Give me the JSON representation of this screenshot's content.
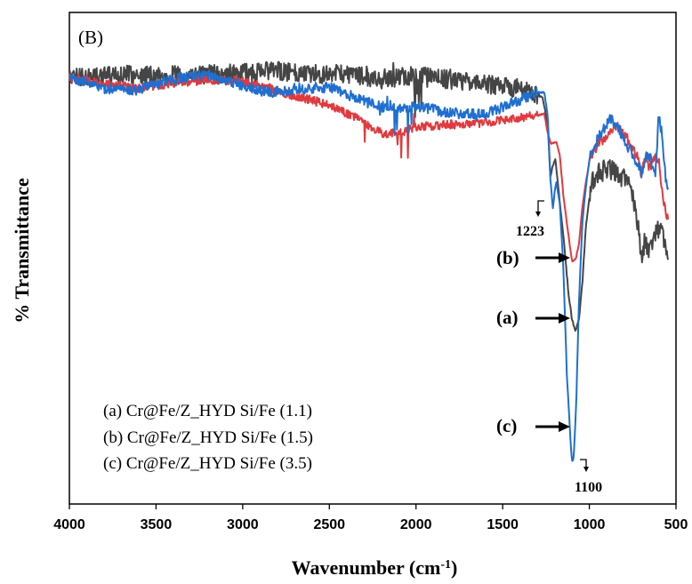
{
  "chart_data": {
    "type": "line",
    "panel_label": "(B)",
    "xlabel": "Wavenumber (cm",
    "xlabel_sup": "-1",
    "xlabel_end": ")",
    "ylabel": "% Transmittance",
    "xlim": [
      4000,
      500
    ],
    "x_reversed": true,
    "xticks": [
      "4000",
      "3500",
      "3000",
      "2500",
      "2000",
      "1500",
      "1000",
      "500"
    ],
    "y_ticks_shown": false,
    "grid": false,
    "legend": [
      "(a) Cr@Fe/Z_HYD Si/Fe (1.1)",
      "(b) Cr@Fe/Z_HYD Si/Fe (1.5)",
      "(c) Cr@Fe/Z_HYD Si/Fe (3.5)"
    ],
    "legend_placement": "bottom-left",
    "series": [
      {
        "color": "#454545",
        "noise": 11,
        "points": [
          [
            4000,
            87
          ],
          [
            3800,
            86
          ],
          [
            3600,
            84
          ],
          [
            3400,
            85
          ],
          [
            3200,
            84
          ],
          [
            3000,
            83
          ],
          [
            2850,
            80
          ],
          [
            2700,
            81
          ],
          [
            2500,
            83
          ],
          [
            2300,
            85
          ],
          [
            2200,
            89
          ],
          [
            2100,
            87
          ],
          [
            2000,
            86
          ],
          [
            1800,
            89
          ],
          [
            1600,
            94
          ],
          [
            1400,
            100
          ],
          [
            1300,
            106
          ],
          [
            1270,
            110
          ],
          [
            1240,
            140
          ],
          [
            1225,
            200
          ],
          [
            1210,
            185
          ],
          [
            1195,
            180
          ],
          [
            1180,
            210
          ],
          [
            1150,
            265
          ],
          [
            1120,
            330
          ],
          [
            1100,
            360
          ],
          [
            1080,
            372
          ],
          [
            1060,
            360
          ],
          [
            1040,
            318
          ],
          [
            1020,
            255
          ],
          [
            1000,
            222
          ],
          [
            980,
            205
          ],
          [
            960,
            198
          ],
          [
            900,
            188
          ],
          [
            850,
            192
          ],
          [
            800,
            200
          ],
          [
            760,
            215
          ],
          [
            720,
            250
          ],
          [
            700,
            290
          ],
          [
            680,
            270
          ],
          [
            650,
            285
          ],
          [
            620,
            265
          ],
          [
            600,
            260
          ],
          [
            580,
            255
          ],
          [
            560,
            280
          ],
          [
            545,
            300
          ]
        ]
      },
      {
        "color": "#e03a3e",
        "noise": 5,
        "points": [
          [
            4000,
            87
          ],
          [
            3800,
            94
          ],
          [
            3600,
            99
          ],
          [
            3400,
            93
          ],
          [
            3200,
            90
          ],
          [
            3000,
            91
          ],
          [
            2850,
            99
          ],
          [
            2700,
            108
          ],
          [
            2500,
            118
          ],
          [
            2300,
            137
          ],
          [
            2200,
            150
          ],
          [
            2100,
            150
          ],
          [
            2000,
            143
          ],
          [
            1800,
            140
          ],
          [
            1600,
            138
          ],
          [
            1400,
            132
          ],
          [
            1300,
            130
          ],
          [
            1260,
            128
          ],
          [
            1240,
            150
          ],
          [
            1220,
            162
          ],
          [
            1200,
            160
          ],
          [
            1190,
            160
          ],
          [
            1170,
            175
          ],
          [
            1150,
            220
          ],
          [
            1120,
            265
          ],
          [
            1100,
            294
          ],
          [
            1080,
            292
          ],
          [
            1060,
            275
          ],
          [
            1040,
            232
          ],
          [
            1020,
            205
          ],
          [
            1000,
            182
          ],
          [
            970,
            168
          ],
          [
            950,
            163
          ],
          [
            900,
            154
          ],
          [
            850,
            140
          ],
          [
            800,
            150
          ],
          [
            760,
            164
          ],
          [
            720,
            178
          ],
          [
            700,
            195
          ],
          [
            680,
            180
          ],
          [
            650,
            188
          ],
          [
            620,
            175
          ],
          [
            600,
            180
          ],
          [
            580,
            215
          ],
          [
            560,
            240
          ],
          [
            545,
            245
          ]
        ]
      },
      {
        "color": "#1f6fd0",
        "noise": 6,
        "points": [
          [
            4000,
            87
          ],
          [
            3800,
            99
          ],
          [
            3600,
            101
          ],
          [
            3400,
            89
          ],
          [
            3200,
            84
          ],
          [
            3000,
            96
          ],
          [
            2850,
            104
          ],
          [
            2700,
            100
          ],
          [
            2500,
            98
          ],
          [
            2300,
            114
          ],
          [
            2200,
            120
          ],
          [
            2100,
            123
          ],
          [
            2000,
            120
          ],
          [
            1800,
            127
          ],
          [
            1600,
            129
          ],
          [
            1400,
            112
          ],
          [
            1300,
            104
          ],
          [
            1260,
            104
          ],
          [
            1240,
            130
          ],
          [
            1225,
            200
          ],
          [
            1210,
            236
          ],
          [
            1200,
            215
          ],
          [
            1190,
            205
          ],
          [
            1170,
            230
          ],
          [
            1150,
            300
          ],
          [
            1130,
            420
          ],
          [
            1110,
            490
          ],
          [
            1100,
            520
          ],
          [
            1090,
            515
          ],
          [
            1075,
            450
          ],
          [
            1060,
            340
          ],
          [
            1040,
            250
          ],
          [
            1020,
            210
          ],
          [
            1000,
            180
          ],
          [
            980,
            170
          ],
          [
            960,
            160
          ],
          [
            920,
            145
          ],
          [
            880,
            135
          ],
          [
            840,
            140
          ],
          [
            800,
            158
          ],
          [
            760,
            170
          ],
          [
            720,
            185
          ],
          [
            700,
            195
          ],
          [
            680,
            178
          ],
          [
            650,
            175
          ],
          [
            620,
            200
          ],
          [
            600,
            130
          ],
          [
            580,
            150
          ],
          [
            560,
            200
          ],
          [
            545,
            210
          ]
        ]
      }
    ],
    "annotations": {
      "peak_1223": "1223",
      "peak_1100": "1100",
      "label_b": "(b)",
      "label_a": "(a)",
      "label_c": "(c)"
    }
  }
}
